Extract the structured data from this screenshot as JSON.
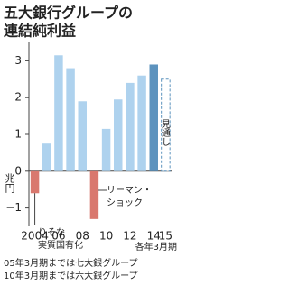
{
  "chart_data": {
    "type": "bar",
    "title_lines": [
      "五大銀行グループの",
      "連結純利益"
    ],
    "y_label": "兆円",
    "x_note": "各年3月期",
    "categories": [
      "2004",
      null,
      "06",
      null,
      "08",
      null,
      "10",
      null,
      "12",
      null,
      "14",
      "15"
    ],
    "values": [
      -0.6,
      0.75,
      3.15,
      2.8,
      1.9,
      -1.3,
      1.15,
      1.95,
      2.4,
      2.6,
      2.9,
      2.5
    ],
    "colors": [
      "#d9786e",
      "#aed2ee",
      "#aed2ee",
      "#aed2ee",
      "#aed2ee",
      "#d9786e",
      "#aed2ee",
      "#aed2ee",
      "#aed2ee",
      "#aed2ee",
      "#5d93be",
      "#ffffff"
    ],
    "bar_styles": [
      "solid",
      "solid",
      "solid",
      "solid",
      "solid",
      "solid",
      "solid",
      "solid",
      "solid",
      "solid",
      "solid",
      "dashed"
    ],
    "ylim": [
      -1.5,
      3.5
    ],
    "yticks": [
      3,
      2,
      1,
      0,
      {
        "value": -1,
        "label": "−1"
      }
    ],
    "annotations": [
      {
        "lines": [
          "りそな",
          "実質国有化"
        ]
      },
      {
        "lines": [
          "リーマン・",
          "ショック"
        ]
      },
      {
        "lines": [
          "見通し"
        ]
      }
    ],
    "footnotes": [
      "05年3月期までは七大銀グループ",
      "10年3月期までは六大銀グループ"
    ]
  }
}
